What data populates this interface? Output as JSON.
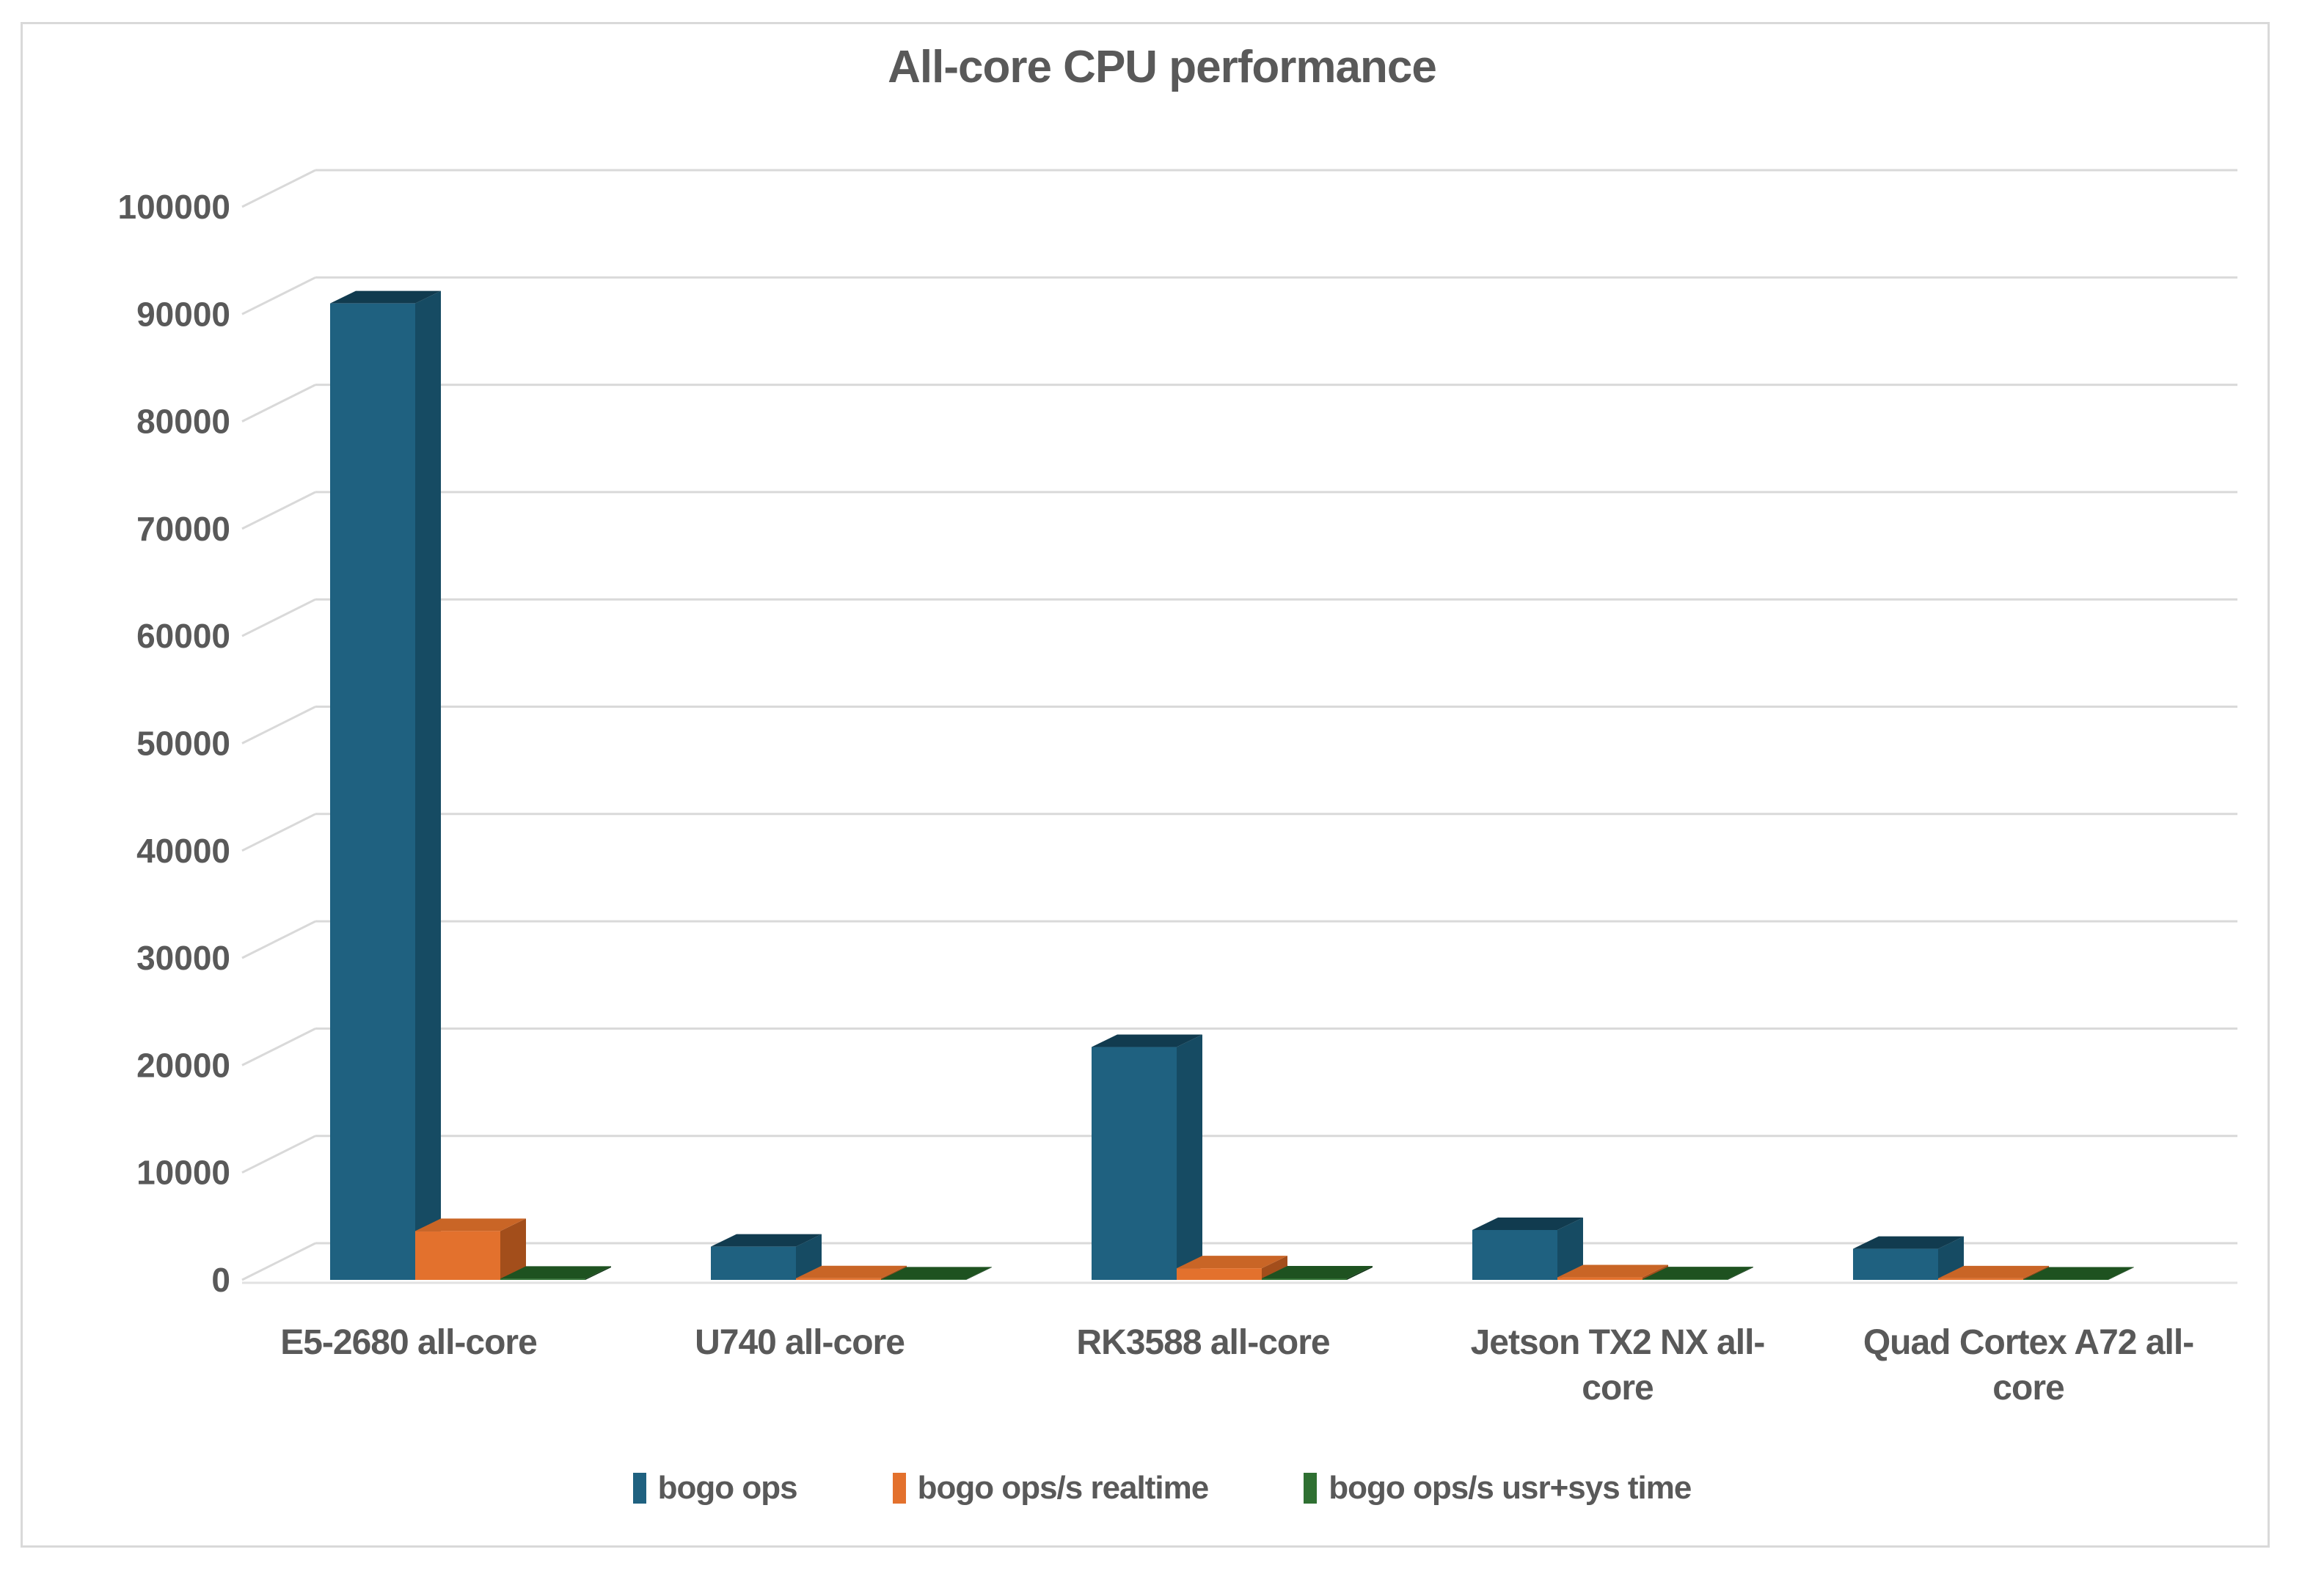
{
  "chart_data": {
    "type": "bar",
    "style": "3d-clustered-column",
    "title": "All-core CPU performance",
    "categories": [
      "E5-2680 all-core",
      "U740 all-core",
      "RK3588 all-core",
      "Jetson TX2 NX all-core",
      "Quad Cortex A72 all-core"
    ],
    "series": [
      {
        "name": "bogo ops",
        "color": "#1F6180",
        "top_color": "#113B4F",
        "side_color": "#164B63",
        "values": [
          91000,
          3100,
          21700,
          4650,
          2900
        ]
      },
      {
        "name": "bogo ops/s realtime",
        "color": "#E3712D",
        "top_color": "#C96526",
        "side_color": "#A34E1B",
        "values": [
          4550,
          155,
          1085,
          235,
          145
        ]
      },
      {
        "name": "bogo ops/s usr+sys time",
        "color": "#2F7032",
        "top_color": "#1E5220",
        "side_color": "#15391A",
        "values": [
          115,
          40,
          135,
          60,
          35
        ]
      }
    ],
    "y_ticks": [
      0,
      10000,
      20000,
      30000,
      40000,
      50000,
      60000,
      70000,
      80000,
      90000,
      100000
    ],
    "ylim": [
      0,
      100000
    ],
    "grid": true,
    "grid_color": "#D9D9D9",
    "text_color": "#595959",
    "legend_position": "bottom"
  }
}
